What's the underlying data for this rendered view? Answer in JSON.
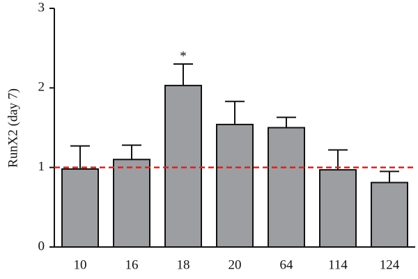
{
  "chart_data": {
    "type": "bar",
    "ylabel": "RunX2 (day 7)",
    "categories": [
      "10",
      "16",
      "18",
      "20",
      "64",
      "114",
      "124"
    ],
    "values": [
      0.98,
      1.1,
      2.03,
      1.54,
      1.5,
      0.97,
      0.81
    ],
    "errors": [
      0.29,
      0.18,
      0.27,
      0.29,
      0.13,
      0.25,
      0.14
    ],
    "color": "#9d9ea2",
    "ylim": [
      0,
      3
    ],
    "yticks": [
      0,
      1,
      2,
      3
    ],
    "reference_line": {
      "value": 1,
      "color": "#e02020"
    },
    "annotations": [
      {
        "category": "18",
        "text": "*"
      }
    ]
  }
}
